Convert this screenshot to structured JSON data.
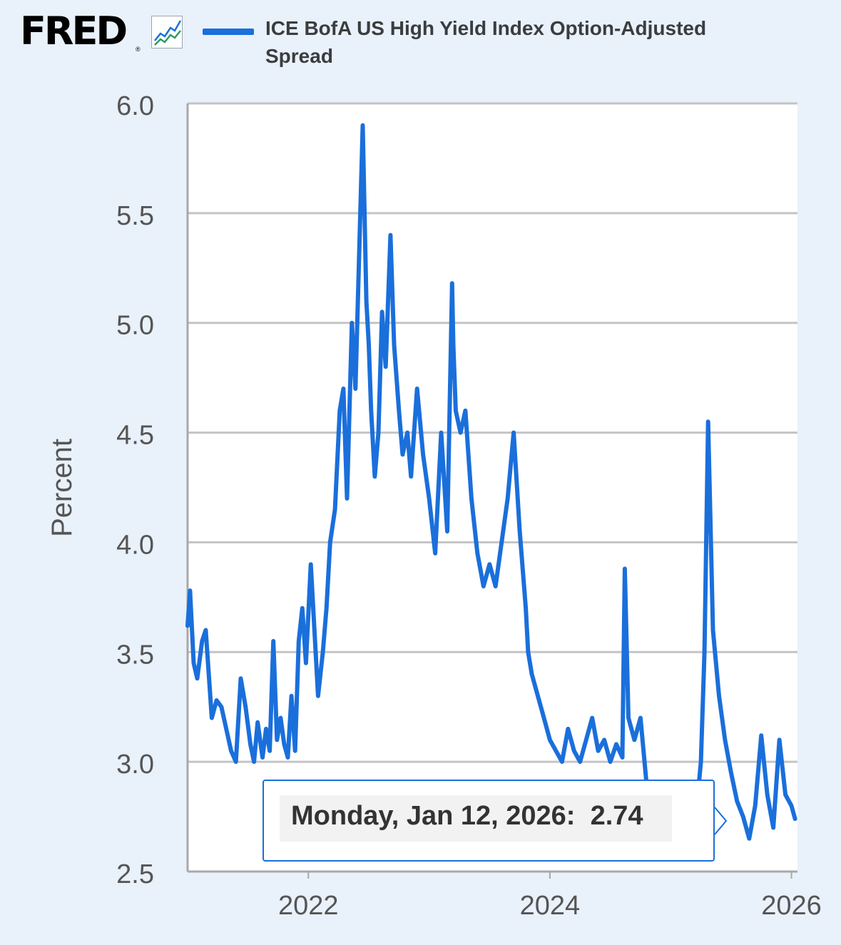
{
  "logo": {
    "text": "FRED",
    "registered": "®",
    "icon": "line-chart-icon"
  },
  "legend": {
    "label": "ICE BofA US High Yield Index Option-Adjusted Spread",
    "color": "#1a6fdb"
  },
  "tooltip": {
    "date": "Monday, Jan 12, 2026:",
    "value": "2.74"
  },
  "chart_data": {
    "type": "line",
    "ylabel": "Percent",
    "xlabel": "",
    "ylim": [
      2.5,
      6.0
    ],
    "xlim": [
      2021.0,
      2026.05
    ],
    "yticks": [
      "2.5",
      "3.0",
      "3.5",
      "4.0",
      "4.5",
      "5.0",
      "5.5",
      "6.0"
    ],
    "xticks": [
      "2022",
      "2024",
      "2026"
    ],
    "grid": true,
    "series": [
      {
        "name": "ICE BofA US High Yield Index Option-Adjusted Spread",
        "color": "#1a6fdb",
        "x": [
          2021.0,
          2021.02,
          2021.05,
          2021.08,
          2021.12,
          2021.15,
          2021.2,
          2021.24,
          2021.28,
          2021.32,
          2021.36,
          2021.4,
          2021.44,
          2021.48,
          2021.52,
          2021.55,
          2021.58,
          2021.62,
          2021.65,
          2021.68,
          2021.71,
          2021.74,
          2021.77,
          2021.8,
          2021.83,
          2021.86,
          2021.89,
          2021.92,
          2021.95,
          2021.98,
          2022.02,
          2022.05,
          2022.08,
          2022.12,
          2022.15,
          2022.18,
          2022.22,
          2022.26,
          2022.29,
          2022.32,
          2022.36,
          2022.39,
          2022.42,
          2022.45,
          2022.48,
          2022.5,
          2022.52,
          2022.55,
          2022.58,
          2022.61,
          2022.64,
          2022.68,
          2022.71,
          2022.75,
          2022.78,
          2022.82,
          2022.85,
          2022.9,
          2022.95,
          2023.0,
          2023.05,
          2023.1,
          2023.15,
          2023.19,
          2023.2,
          2023.22,
          2023.26,
          2023.3,
          2023.35,
          2023.4,
          2023.45,
          2023.5,
          2023.55,
          2023.6,
          2023.65,
          2023.7,
          2023.75,
          2023.8,
          2023.82,
          2023.85,
          2023.9,
          2023.95,
          2024.0,
          2024.05,
          2024.1,
          2024.15,
          2024.2,
          2024.25,
          2024.3,
          2024.35,
          2024.4,
          2024.45,
          2024.5,
          2024.55,
          2024.6,
          2024.62,
          2024.65,
          2024.7,
          2024.75,
          2024.8,
          2024.85,
          2024.9,
          2024.95,
          2025.0,
          2025.05,
          2025.1,
          2025.15,
          2025.2,
          2025.25,
          2025.28,
          2025.31,
          2025.35,
          2025.4,
          2025.45,
          2025.5,
          2025.55,
          2025.6,
          2025.65,
          2025.7,
          2025.75,
          2025.8,
          2025.85,
          2025.9,
          2025.95,
          2026.0,
          2026.03
        ],
        "y": [
          3.62,
          3.78,
          3.45,
          3.38,
          3.55,
          3.6,
          3.2,
          3.28,
          3.25,
          3.15,
          3.05,
          3.0,
          3.38,
          3.25,
          3.08,
          3.0,
          3.18,
          3.02,
          3.15,
          3.05,
          3.55,
          3.1,
          3.2,
          3.08,
          3.02,
          3.3,
          3.05,
          3.55,
          3.7,
          3.45,
          3.9,
          3.6,
          3.3,
          3.5,
          3.7,
          4.0,
          4.15,
          4.6,
          4.7,
          4.2,
          5.0,
          4.7,
          5.3,
          5.9,
          5.1,
          4.9,
          4.6,
          4.3,
          4.5,
          5.05,
          4.8,
          5.4,
          4.9,
          4.6,
          4.4,
          4.5,
          4.3,
          4.7,
          4.4,
          4.2,
          3.95,
          4.5,
          4.05,
          5.18,
          4.9,
          4.6,
          4.5,
          4.6,
          4.2,
          3.95,
          3.8,
          3.9,
          3.8,
          4.0,
          4.2,
          4.5,
          4.05,
          3.7,
          3.5,
          3.4,
          3.3,
          3.2,
          3.1,
          3.05,
          3.0,
          3.15,
          3.05,
          3.0,
          3.1,
          3.2,
          3.05,
          3.1,
          3.0,
          3.08,
          3.02,
          3.88,
          3.2,
          3.1,
          3.2,
          2.9,
          2.82,
          2.6,
          2.72,
          2.88,
          2.7,
          2.8,
          2.6,
          2.7,
          3.0,
          3.5,
          4.55,
          3.6,
          3.3,
          3.1,
          2.95,
          2.82,
          2.75,
          2.65,
          2.8,
          3.12,
          2.85,
          2.7,
          3.1,
          2.85,
          2.8,
          2.74
        ]
      }
    ]
  }
}
